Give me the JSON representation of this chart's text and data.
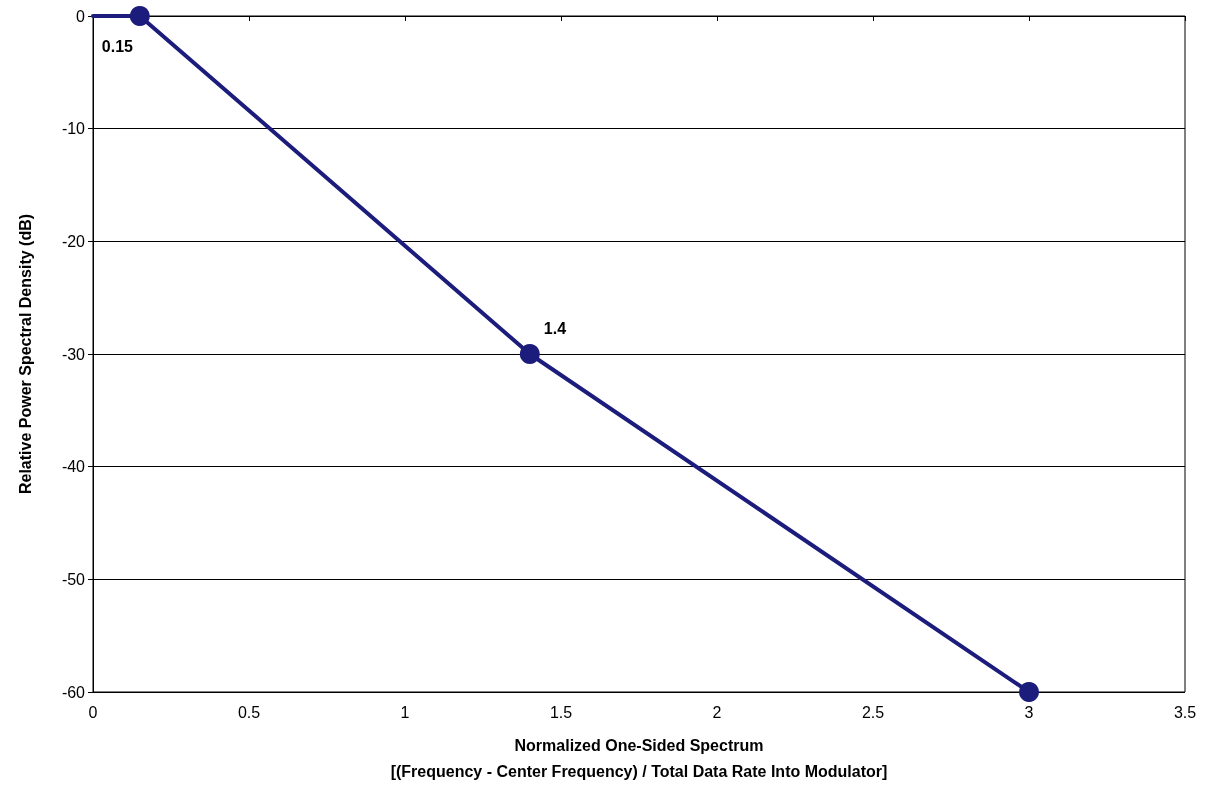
{
  "chart_data": {
    "type": "line",
    "xlabel": "Normalized One-Sided Spectrum\n[(Frequency - Center Frequency) / Total Data Rate Into Modulator]",
    "ylabel": "Relative Power Spectral Density (dB)",
    "series": [
      {
        "x": [
          0,
          0.15
        ],
        "values": [
          0,
          0
        ],
        "color": "#1c1c7c"
      },
      {
        "x": [
          0.15,
          1.4,
          3
        ],
        "values": [
          0,
          -30,
          -60
        ],
        "color": "#1c1c7c",
        "marker": "circle"
      }
    ],
    "annotations": [
      {
        "text": "0.15",
        "x": 0.15,
        "y": 0
      },
      {
        "text": "1.4",
        "x": 1.4,
        "y": -30
      }
    ],
    "xlim": [
      0,
      3.5
    ],
    "xticks": [
      0,
      0.5,
      1,
      1.5,
      2,
      2.5,
      3,
      3.5
    ],
    "ylim": [
      -60,
      0
    ],
    "yticks": [
      -60,
      -50,
      -40,
      -30,
      -20,
      -10,
      0
    ],
    "grid": "y",
    "line_style": "solid"
  }
}
